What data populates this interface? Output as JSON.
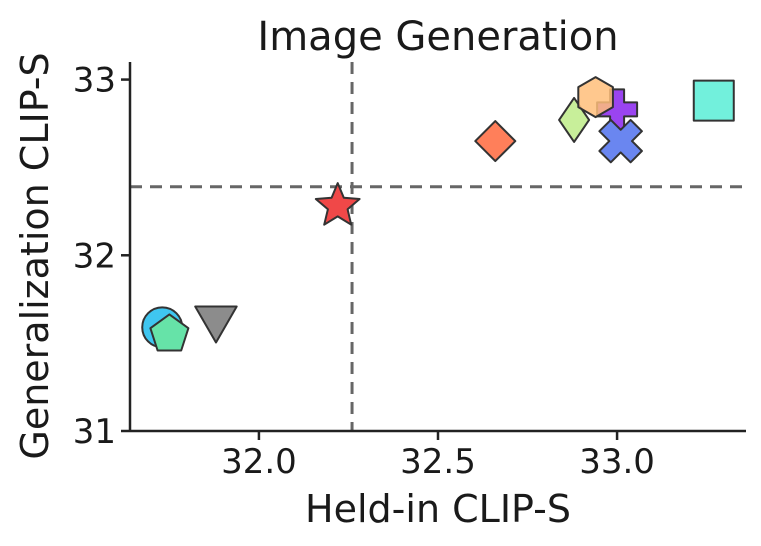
{
  "chart_data": {
    "type": "scatter",
    "title": "Image Generation",
    "xlabel": "Held-in CLIP-S",
    "ylabel": "Generalization CLIP-S",
    "xlim": [
      31.64,
      33.36
    ],
    "ylim": [
      31.0,
      33.1
    ],
    "xticks": [
      32.0,
      32.5,
      33.0
    ],
    "xtick_labels": [
      "32.0",
      "32.5",
      "33.0"
    ],
    "yticks": [
      31,
      32,
      33
    ],
    "ytick_labels": [
      "31",
      "32",
      "33"
    ],
    "grid": false,
    "reference_lines": {
      "vertical_x": 32.26,
      "horizontal_y": 32.39
    },
    "points": [
      {
        "x": 31.73,
        "y": 31.59,
        "marker": "circle",
        "color": "#3fc6f0"
      },
      {
        "x": 31.75,
        "y": 31.55,
        "marker": "pentagon",
        "color": "#66e3a8"
      },
      {
        "x": 31.88,
        "y": 31.64,
        "marker": "triangle-down",
        "color": "#8c8c8c"
      },
      {
        "x": 32.22,
        "y": 32.28,
        "marker": "star",
        "color": "#f04848"
      },
      {
        "x": 32.66,
        "y": 32.65,
        "marker": "diamond",
        "color": "#ff7f5a"
      },
      {
        "x": 32.88,
        "y": 32.77,
        "marker": "thin-diamond",
        "color": "#c8ef9a"
      },
      {
        "x": 33.0,
        "y": 32.83,
        "marker": "plus",
        "color": "#9a44f0"
      },
      {
        "x": 32.94,
        "y": 32.9,
        "marker": "hexagon",
        "color": "#ffbe7a"
      },
      {
        "x": 33.01,
        "y": 32.65,
        "marker": "x",
        "color": "#6a86f0"
      },
      {
        "x": 33.27,
        "y": 32.88,
        "marker": "square",
        "color": "#72f0dc"
      }
    ]
  }
}
